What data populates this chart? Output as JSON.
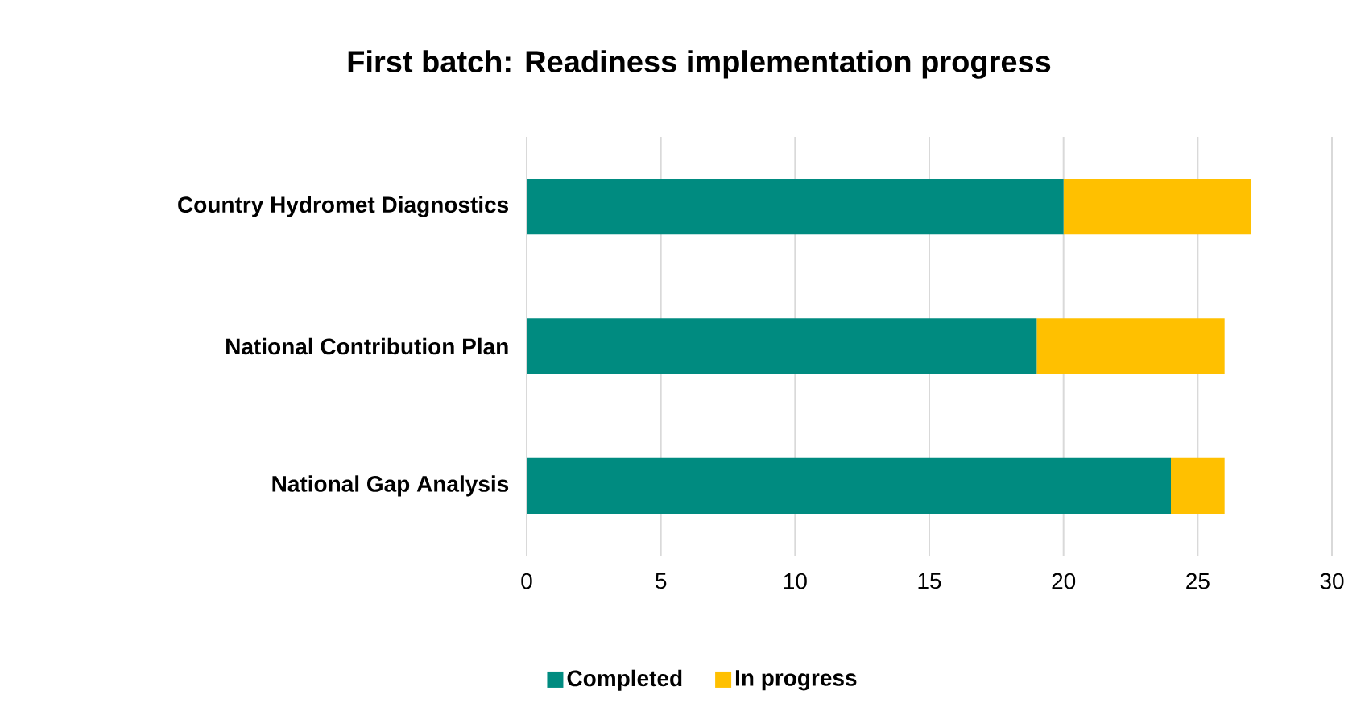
{
  "chart_data": {
    "type": "bar",
    "orientation": "horizontal",
    "stacked": true,
    "title": "First batch: Readiness implementation progress",
    "categories": [
      "Country Hydromet Diagnostics",
      "National Contribution Plan",
      "National Gap Analysis"
    ],
    "series": [
      {
        "name": "Completed",
        "color": "#008b80",
        "values": [
          20,
          19,
          24
        ]
      },
      {
        "name": "In progress",
        "color": "#ffc000",
        "values": [
          7,
          7,
          2
        ]
      }
    ],
    "xlim": [
      0,
      30
    ],
    "xticks": [
      0,
      5,
      10,
      15,
      20,
      25,
      30
    ],
    "grid": "x",
    "legend": "bottom"
  }
}
